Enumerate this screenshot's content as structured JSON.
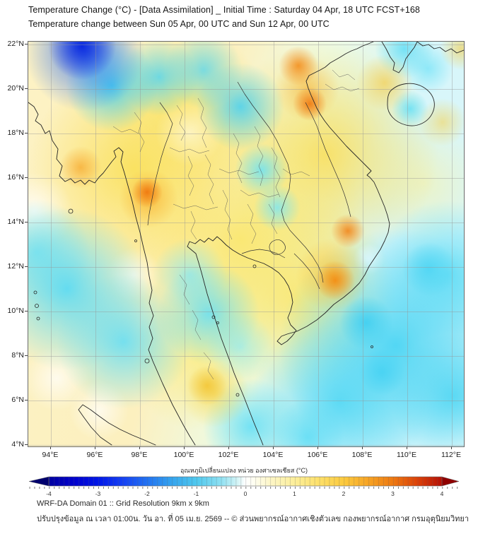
{
  "header": {
    "title_line1": "Temperature Change (°C) - [Data Assimilation] _ Initial Time : Saturday 04 Apr, 18 UTC FCST+168",
    "title_line2": "Temperature change between Sun 05 Apr, 00 UTC and Sun 12 Apr, 00 UTC"
  },
  "map": {
    "x_ticks": [
      "94°E",
      "96°E",
      "98°E",
      "100°E",
      "102°E",
      "104°E",
      "106°E",
      "108°E",
      "110°E",
      "112°E"
    ],
    "y_ticks": [
      "22°N",
      "20°N",
      "18°N",
      "16°N",
      "14°N",
      "12°N",
      "10°N",
      "8°N",
      "6°N",
      "4°N"
    ],
    "region": "Thailand / Indochina",
    "field": "temperature change",
    "warm_color": "#f08414",
    "cool_color": "#45d5f2"
  },
  "colorbar": {
    "label": "อุณหภูมิเปลี่ยนแปลง หน่วย องศาเซลเซียส (°C)",
    "ticks": [
      "-4",
      "-3",
      "-2",
      "-1",
      "0",
      "1",
      "2",
      "3",
      "4"
    ],
    "min_value": -4,
    "max_value": 4,
    "min_color": "#0000a0",
    "zero_color": "#ffffff",
    "max_color": "#b51005"
  },
  "footer": {
    "line1": "WRF-DA Domain 01 :: Grid Resolution 9km x 9km",
    "line2": "ปรับปรุงข้อมูล ณ เวลา 01:00น. วัน อา. ที่ 05 เม.ย. 2569 -- © ส่วนพยากรณ์อากาศเชิงตัวเลข กองพยากรณ์อากาศ กรมอุตุนิยมวิทยา"
  }
}
